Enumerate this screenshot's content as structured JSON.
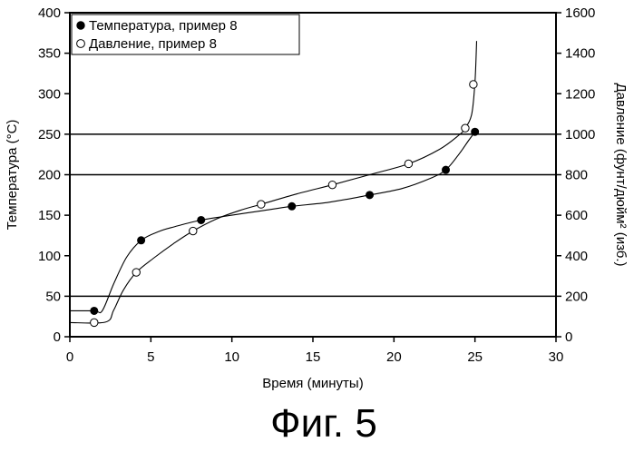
{
  "chart_data": {
    "type": "scatter",
    "xlabel": "Время (минуты)",
    "ylabel": "Температура (°C)",
    "y2label": "Давление (фунт/дюйм² (изб.)",
    "xlim": [
      0,
      30
    ],
    "ylim": [
      0,
      400
    ],
    "y2lim": [
      0,
      1600
    ],
    "x_ticks": [
      "0",
      "5",
      "10",
      "15",
      "20",
      "25",
      "30"
    ],
    "y_ticks": [
      "0",
      "50",
      "100",
      "150",
      "200",
      "250",
      "300",
      "350",
      "400"
    ],
    "y2_ticks": [
      "0",
      "200",
      "400",
      "600",
      "800",
      "1000",
      "1200",
      "1400",
      "1600"
    ],
    "reference_lines_y": [
      50,
      200,
      250
    ],
    "legend_position": "top-left",
    "series": [
      {
        "name": "Температура, пример 8",
        "marker": "filled-circle",
        "axis": "left",
        "points": [
          [
            1.5,
            32
          ],
          [
            4.4,
            119
          ],
          [
            8.1,
            144
          ],
          [
            13.7,
            161
          ],
          [
            18.5,
            175
          ],
          [
            23.2,
            206
          ],
          [
            25.0,
            253
          ]
        ],
        "curve": [
          [
            0,
            32
          ],
          [
            1.5,
            32
          ],
          [
            2.0,
            32
          ],
          [
            2.7,
            65
          ],
          [
            3.5,
            98
          ],
          [
            4.4,
            119
          ],
          [
            5.5,
            130
          ],
          [
            6.5,
            136
          ],
          [
            8.1,
            144
          ],
          [
            10,
            150
          ],
          [
            12,
            156
          ],
          [
            13.7,
            161
          ],
          [
            16,
            166
          ],
          [
            18.5,
            175
          ],
          [
            20.5,
            183
          ],
          [
            22.3,
            196
          ],
          [
            23.2,
            206
          ],
          [
            24.0,
            225
          ],
          [
            24.6,
            242
          ],
          [
            25.0,
            253
          ]
        ]
      },
      {
        "name": "Давление, пример 8",
        "marker": "open-circle",
        "axis": "right",
        "points": [
          [
            1.5,
            70
          ],
          [
            4.1,
            318
          ],
          [
            7.6,
            522
          ],
          [
            11.8,
            654
          ],
          [
            16.2,
            750
          ],
          [
            20.9,
            854
          ],
          [
            24.4,
            1030
          ],
          [
            24.9,
            1246
          ]
        ],
        "curve": [
          [
            0,
            70
          ],
          [
            2.2,
            72
          ],
          [
            2.7,
            130
          ],
          [
            3.3,
            230
          ],
          [
            4.1,
            318
          ],
          [
            5.2,
            390
          ],
          [
            6.4,
            460
          ],
          [
            7.6,
            522
          ],
          [
            9,
            580
          ],
          [
            10.5,
            624
          ],
          [
            11.8,
            654
          ],
          [
            14,
            705
          ],
          [
            16.2,
            750
          ],
          [
            18.5,
            800
          ],
          [
            20.9,
            854
          ],
          [
            22.8,
            925
          ],
          [
            24.0,
            995
          ],
          [
            24.4,
            1030
          ],
          [
            24.8,
            1100
          ],
          [
            25.0,
            1260
          ],
          [
            25.1,
            1460
          ]
        ]
      }
    ]
  },
  "caption": "Фиг. 5"
}
